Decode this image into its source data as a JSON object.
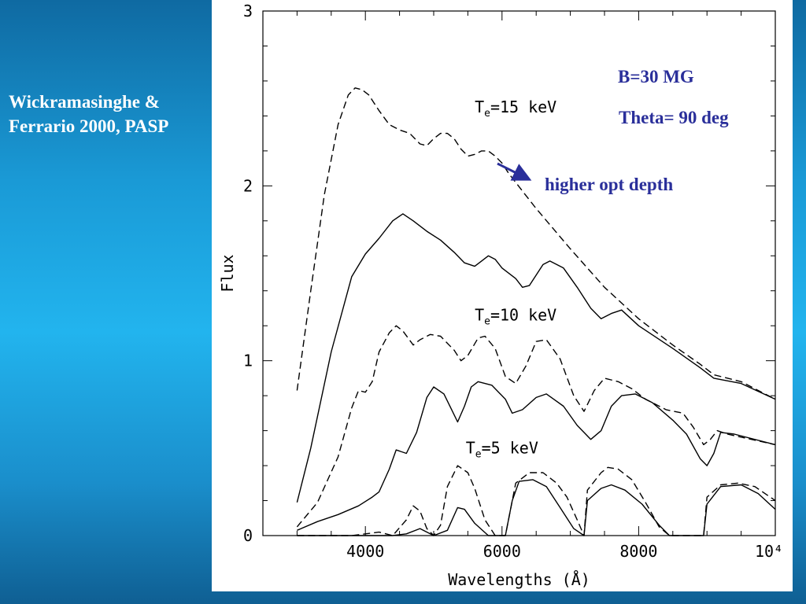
{
  "caption": {
    "line1": "Wickramasinghe &",
    "line2": "Ferrario 2000, PASP"
  },
  "annotations": {
    "b_field": "B=30 MG",
    "theta": "Theta= 90 deg",
    "arrow_note": "higher opt depth",
    "color": "#2a2f9a"
  },
  "chart_data": {
    "type": "line",
    "xlabel": "Wavelengths (Å)",
    "ylabel": "Flux",
    "xlim": [
      2500,
      10000
    ],
    "ylim": [
      0,
      3
    ],
    "x_ticks": [
      {
        "value": 4000,
        "label": "4000"
      },
      {
        "value": 6000,
        "label": "6000"
      },
      {
        "value": 8000,
        "label": "8000"
      },
      {
        "value": 10000,
        "label": "10⁴"
      }
    ],
    "y_ticks": [
      {
        "value": 0,
        "label": "0"
      },
      {
        "value": 1,
        "label": "1"
      },
      {
        "value": 2,
        "label": "2"
      },
      {
        "value": 3,
        "label": "3"
      }
    ],
    "curve_labels": [
      {
        "base": "T",
        "sub": "e",
        "rest": "=15 keV",
        "x": 6200,
        "y": 2.42
      },
      {
        "base": "T",
        "sub": "e",
        "rest": "=10 keV",
        "x": 6200,
        "y": 1.23
      },
      {
        "base": "T",
        "sub": "e",
        "rest": "=5 keV",
        "x": 6000,
        "y": 0.47
      }
    ],
    "series": [
      {
        "group": "15 keV",
        "style": "dashed",
        "points": [
          [
            3000,
            0.83
          ],
          [
            3200,
            1.4
          ],
          [
            3400,
            1.95
          ],
          [
            3600,
            2.35
          ],
          [
            3750,
            2.52
          ],
          [
            3850,
            2.56
          ],
          [
            3950,
            2.55
          ],
          [
            4050,
            2.52
          ],
          [
            4200,
            2.43
          ],
          [
            4350,
            2.35
          ],
          [
            4500,
            2.32
          ],
          [
            4650,
            2.3
          ],
          [
            4800,
            2.24
          ],
          [
            4900,
            2.23
          ],
          [
            5000,
            2.27
          ],
          [
            5100,
            2.3
          ],
          [
            5200,
            2.3
          ],
          [
            5300,
            2.27
          ],
          [
            5400,
            2.21
          ],
          [
            5500,
            2.17
          ],
          [
            5600,
            2.18
          ],
          [
            5700,
            2.2
          ],
          [
            5800,
            2.2
          ],
          [
            5900,
            2.17
          ],
          [
            6000,
            2.13
          ],
          [
            6100,
            2.07
          ],
          [
            6300,
            1.97
          ],
          [
            6500,
            1.87
          ],
          [
            7000,
            1.64
          ],
          [
            7500,
            1.42
          ],
          [
            8000,
            1.24
          ],
          [
            8500,
            1.09
          ],
          [
            8900,
            0.98
          ],
          [
            9100,
            0.92
          ],
          [
            9500,
            0.88
          ],
          [
            10000,
            0.78
          ]
        ]
      },
      {
        "group": "15 keV",
        "style": "solid",
        "points": [
          [
            3000,
            0.19
          ],
          [
            3200,
            0.5
          ],
          [
            3500,
            1.05
          ],
          [
            3800,
            1.48
          ],
          [
            4000,
            1.61
          ],
          [
            4200,
            1.7
          ],
          [
            4400,
            1.8
          ],
          [
            4550,
            1.84
          ],
          [
            4700,
            1.8
          ],
          [
            4900,
            1.74
          ],
          [
            5100,
            1.69
          ],
          [
            5300,
            1.62
          ],
          [
            5450,
            1.56
          ],
          [
            5600,
            1.54
          ],
          [
            5700,
            1.57
          ],
          [
            5800,
            1.6
          ],
          [
            5900,
            1.58
          ],
          [
            6000,
            1.53
          ],
          [
            6200,
            1.47
          ],
          [
            6300,
            1.42
          ],
          [
            6400,
            1.43
          ],
          [
            6500,
            1.49
          ],
          [
            6600,
            1.55
          ],
          [
            6700,
            1.57
          ],
          [
            6900,
            1.53
          ],
          [
            7100,
            1.42
          ],
          [
            7300,
            1.3
          ],
          [
            7450,
            1.24
          ],
          [
            7600,
            1.27
          ],
          [
            7750,
            1.29
          ],
          [
            8000,
            1.2
          ],
          [
            8500,
            1.07
          ],
          [
            8900,
            0.96
          ],
          [
            9100,
            0.9
          ],
          [
            9500,
            0.87
          ],
          [
            10000,
            0.78
          ]
        ]
      },
      {
        "group": "10 keV",
        "style": "dashed",
        "points": [
          [
            3000,
            0.05
          ],
          [
            3300,
            0.19
          ],
          [
            3600,
            0.45
          ],
          [
            3800,
            0.73
          ],
          [
            3900,
            0.83
          ],
          [
            4000,
            0.82
          ],
          [
            4100,
            0.88
          ],
          [
            4200,
            1.05
          ],
          [
            4350,
            1.16
          ],
          [
            4450,
            1.2
          ],
          [
            4550,
            1.17
          ],
          [
            4700,
            1.09
          ],
          [
            4800,
            1.12
          ],
          [
            4950,
            1.15
          ],
          [
            5100,
            1.14
          ],
          [
            5300,
            1.06
          ],
          [
            5400,
            1.0
          ],
          [
            5500,
            1.03
          ],
          [
            5650,
            1.13
          ],
          [
            5750,
            1.14
          ],
          [
            5900,
            1.07
          ],
          [
            6050,
            0.91
          ],
          [
            6200,
            0.87
          ],
          [
            6350,
            0.97
          ],
          [
            6500,
            1.11
          ],
          [
            6650,
            1.12
          ],
          [
            6850,
            1.01
          ],
          [
            7050,
            0.8
          ],
          [
            7200,
            0.71
          ],
          [
            7350,
            0.83
          ],
          [
            7500,
            0.9
          ],
          [
            7700,
            0.88
          ],
          [
            7900,
            0.84
          ],
          [
            8100,
            0.78
          ],
          [
            8400,
            0.72
          ],
          [
            8650,
            0.7
          ],
          [
            8800,
            0.62
          ],
          [
            8950,
            0.52
          ],
          [
            9050,
            0.55
          ],
          [
            9150,
            0.6
          ],
          [
            9300,
            0.58
          ],
          [
            10000,
            0.52
          ]
        ]
      },
      {
        "group": "10 keV",
        "style": "solid",
        "points": [
          [
            3000,
            0.03
          ],
          [
            3300,
            0.08
          ],
          [
            3600,
            0.12
          ],
          [
            3900,
            0.17
          ],
          [
            4100,
            0.22
          ],
          [
            4200,
            0.25
          ],
          [
            4350,
            0.38
          ],
          [
            4450,
            0.49
          ],
          [
            4600,
            0.47
          ],
          [
            4750,
            0.59
          ],
          [
            4900,
            0.79
          ],
          [
            5000,
            0.85
          ],
          [
            5150,
            0.81
          ],
          [
            5250,
            0.73
          ],
          [
            5350,
            0.65
          ],
          [
            5450,
            0.74
          ],
          [
            5550,
            0.85
          ],
          [
            5650,
            0.88
          ],
          [
            5850,
            0.86
          ],
          [
            6050,
            0.78
          ],
          [
            6150,
            0.7
          ],
          [
            6300,
            0.72
          ],
          [
            6500,
            0.79
          ],
          [
            6650,
            0.81
          ],
          [
            6900,
            0.74
          ],
          [
            7100,
            0.63
          ],
          [
            7300,
            0.55
          ],
          [
            7450,
            0.6
          ],
          [
            7600,
            0.74
          ],
          [
            7750,
            0.8
          ],
          [
            7950,
            0.81
          ],
          [
            8200,
            0.76
          ],
          [
            8500,
            0.66
          ],
          [
            8700,
            0.58
          ],
          [
            8900,
            0.44
          ],
          [
            9000,
            0.4
          ],
          [
            9100,
            0.47
          ],
          [
            9200,
            0.59
          ],
          [
            9400,
            0.58
          ],
          [
            10000,
            0.52
          ]
        ]
      },
      {
        "group": "5 keV",
        "style": "dashed",
        "points": [
          [
            3000,
            0.0
          ],
          [
            3800,
            0.0
          ],
          [
            4000,
            0.01
          ],
          [
            4200,
            0.02
          ],
          [
            4400,
            0.0
          ],
          [
            4600,
            0.09
          ],
          [
            4700,
            0.17
          ],
          [
            4800,
            0.14
          ],
          [
            4900,
            0.04
          ],
          [
            5000,
            0.0
          ],
          [
            5100,
            0.06
          ],
          [
            5200,
            0.28
          ],
          [
            5350,
            0.4
          ],
          [
            5500,
            0.36
          ],
          [
            5600,
            0.27
          ],
          [
            5750,
            0.09
          ],
          [
            5900,
            0.0
          ],
          [
            6050,
            0.0
          ],
          [
            6200,
            0.3
          ],
          [
            6400,
            0.36
          ],
          [
            6600,
            0.36
          ],
          [
            6800,
            0.3
          ],
          [
            6950,
            0.22
          ],
          [
            7100,
            0.09
          ],
          [
            7200,
            0.0
          ],
          [
            7250,
            0.26
          ],
          [
            7450,
            0.36
          ],
          [
            7550,
            0.39
          ],
          [
            7700,
            0.38
          ],
          [
            7900,
            0.32
          ],
          [
            8100,
            0.19
          ],
          [
            8300,
            0.05
          ],
          [
            8450,
            0.0
          ],
          [
            8950,
            0.0
          ],
          [
            9000,
            0.22
          ],
          [
            9200,
            0.29
          ],
          [
            9450,
            0.3
          ],
          [
            9700,
            0.28
          ],
          [
            10000,
            0.2
          ]
        ]
      },
      {
        "group": "5 keV",
        "style": "solid",
        "points": [
          [
            3000,
            0.0
          ],
          [
            4400,
            0.0
          ],
          [
            4600,
            0.01
          ],
          [
            4800,
            0.04
          ],
          [
            5000,
            0.0
          ],
          [
            5200,
            0.03
          ],
          [
            5350,
            0.16
          ],
          [
            5450,
            0.15
          ],
          [
            5600,
            0.07
          ],
          [
            5800,
            0.0
          ],
          [
            6050,
            0.0
          ],
          [
            6150,
            0.2
          ],
          [
            6250,
            0.31
          ],
          [
            6450,
            0.32
          ],
          [
            6650,
            0.28
          ],
          [
            6850,
            0.16
          ],
          [
            7050,
            0.04
          ],
          [
            7200,
            0.0
          ],
          [
            7250,
            0.2
          ],
          [
            7450,
            0.27
          ],
          [
            7600,
            0.29
          ],
          [
            7800,
            0.26
          ],
          [
            8050,
            0.18
          ],
          [
            8300,
            0.06
          ],
          [
            8450,
            0.0
          ],
          [
            8950,
            0.0
          ],
          [
            9000,
            0.18
          ],
          [
            9200,
            0.28
          ],
          [
            9500,
            0.29
          ],
          [
            9750,
            0.24
          ],
          [
            10000,
            0.15
          ]
        ]
      }
    ]
  }
}
